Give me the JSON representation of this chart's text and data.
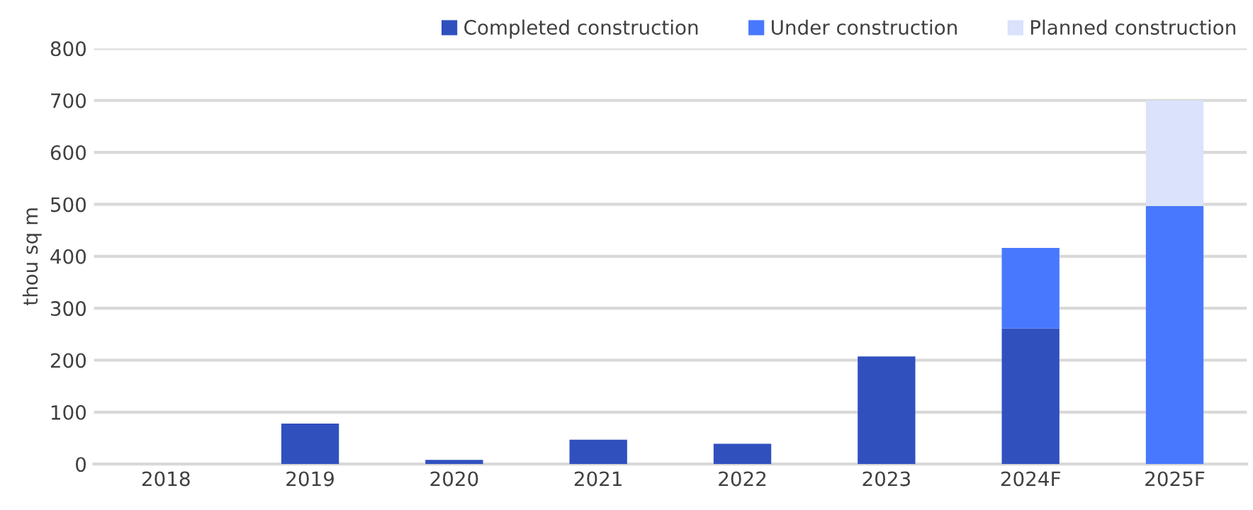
{
  "chart_data": {
    "type": "bar",
    "ylabel": "thou sq m",
    "categories": [
      "2018",
      "2019",
      "2020",
      "2021",
      "2022",
      "2023",
      "2024F",
      "2025F"
    ],
    "stacked": true,
    "series": [
      {
        "name": "Completed construction",
        "color": "#3050be",
        "values": [
          0,
          78,
          8,
          47,
          39,
          207,
          261,
          0
        ]
      },
      {
        "name": "Under construction",
        "color": "#4878fd",
        "values": [
          0,
          0,
          0,
          0,
          0,
          0,
          155,
          497
        ]
      },
      {
        "name": "Planned construction",
        "color": "#dae2fc",
        "values": [
          0,
          0,
          0,
          0,
          0,
          0,
          0,
          203
        ]
      }
    ],
    "ylim": [
      0,
      800
    ],
    "yticks": [
      0,
      100,
      200,
      300,
      400,
      500,
      600,
      700,
      800
    ],
    "grid": "y",
    "legend": "top right"
  }
}
